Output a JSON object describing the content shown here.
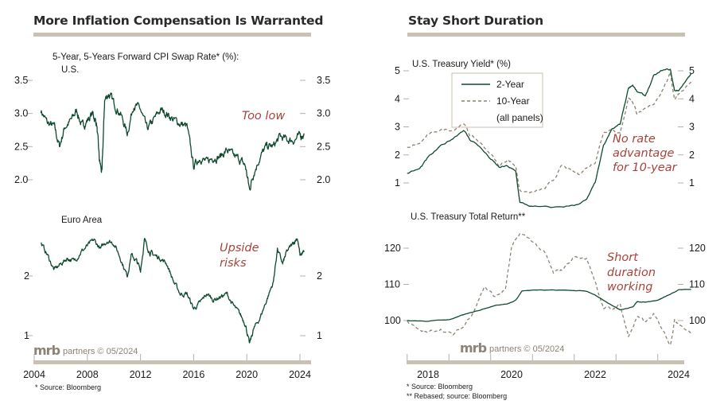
{
  "left_panel": {
    "title": "More Inflation Compensation Is Warranted",
    "footnote": "* Source: Bloomberg",
    "brand": {
      "mrb": "mrb",
      "rest": "partners © 05/2024"
    }
  },
  "right_panel": {
    "title": "Stay Short Duration",
    "footnotes": [
      "*  Source: Bloomberg",
      "** Rebased; source: Bloomberg"
    ],
    "brand": {
      "mrb": "mrb",
      "rest": "partners © 05/2024"
    },
    "legend": {
      "items": [
        "2-Year",
        "10-Year"
      ],
      "note": "(all panels)"
    }
  },
  "colors": {
    "primary_line": "#0d4a2e",
    "secondary_line": "#8d8272",
    "annotation": "#a8433b",
    "rule": "#c9c1b1",
    "tick": "#b5b0a6"
  },
  "chart_data": [
    {
      "id": "us_swap",
      "type": "line",
      "title": "5-Year, 5-Years Forward CPI Swap Rate* (%):",
      "subtitle": "U.S.",
      "annotation": "Too low",
      "xlabel": "",
      "ylabel": "%",
      "xlim": [
        2004,
        2024.3
      ],
      "ylim": [
        1.6,
        3.7
      ],
      "yticks": [
        "3.5",
        "3.0",
        "2.5",
        "2.0"
      ],
      "ytick_values": [
        3.5,
        3.0,
        2.5,
        2.0
      ],
      "series": [
        {
          "name": "U.S.",
          "x": [
            2004.5,
            2005.0,
            2005.5,
            2005.9,
            2006.3,
            2006.8,
            2007.2,
            2007.6,
            2008.0,
            2008.4,
            2008.7,
            2008.9,
            2009.1,
            2009.3,
            2009.6,
            2010.0,
            2010.5,
            2011.0,
            2011.5,
            2012.0,
            2012.5,
            2013.0,
            2013.5,
            2014.0,
            2014.5,
            2015.0,
            2015.5,
            2016.0,
            2016.5,
            2017.0,
            2017.5,
            2018.0,
            2018.5,
            2019.0,
            2019.5,
            2019.9,
            2020.2,
            2020.5,
            2021.0,
            2021.5,
            2022.0,
            2022.5,
            2023.0,
            2023.5,
            2024.0,
            2024.3
          ],
          "values": [
            3.05,
            2.85,
            2.8,
            2.5,
            2.8,
            2.9,
            3.05,
            2.8,
            2.9,
            3.0,
            2.85,
            2.3,
            2.1,
            3.2,
            3.3,
            3.15,
            3.0,
            2.7,
            3.15,
            3.05,
            2.75,
            2.9,
            3.05,
            3.0,
            2.9,
            2.85,
            2.8,
            2.2,
            2.35,
            2.25,
            2.35,
            2.35,
            2.45,
            2.35,
            2.3,
            2.2,
            1.85,
            2.1,
            2.35,
            2.5,
            2.5,
            2.65,
            2.6,
            2.6,
            2.65,
            2.7
          ]
        }
      ]
    },
    {
      "id": "euro_swap",
      "type": "line",
      "subtitle": "Euro Area",
      "annotation": "Upside risks",
      "xlim": [
        2004,
        2024.3
      ],
      "ylim": [
        0.7,
        2.9
      ],
      "yticks": [
        "2",
        "1"
      ],
      "ytick_values": [
        2,
        1
      ],
      "xticks": [
        "2004",
        "2008",
        "2012",
        "2016",
        "2020",
        "2024"
      ],
      "series": [
        {
          "name": "Euro Area",
          "x": [
            2004.5,
            2005.0,
            2005.5,
            2006.0,
            2006.5,
            2007.0,
            2007.5,
            2008.0,
            2008.5,
            2009.0,
            2009.5,
            2010.0,
            2010.5,
            2011.0,
            2011.3,
            2011.7,
            2012.0,
            2012.3,
            2012.7,
            2013.0,
            2013.5,
            2014.0,
            2014.5,
            2015.0,
            2015.5,
            2016.0,
            2016.5,
            2017.0,
            2017.5,
            2018.0,
            2018.5,
            2019.0,
            2019.5,
            2019.9,
            2020.2,
            2020.5,
            2021.0,
            2021.5,
            2022.0,
            2022.3,
            2022.7,
            2023.0,
            2023.5,
            2023.8,
            2024.0,
            2024.3
          ],
          "values": [
            2.55,
            2.35,
            2.1,
            2.2,
            2.3,
            2.25,
            2.4,
            2.5,
            2.6,
            2.45,
            2.6,
            2.55,
            2.3,
            2.0,
            2.35,
            2.25,
            2.1,
            2.6,
            2.4,
            2.35,
            2.3,
            2.2,
            1.9,
            1.7,
            1.7,
            1.45,
            1.55,
            1.7,
            1.6,
            1.65,
            1.7,
            1.5,
            1.35,
            1.2,
            0.85,
            1.1,
            1.3,
            1.6,
            1.9,
            2.45,
            2.2,
            2.4,
            2.55,
            2.65,
            2.35,
            2.4
          ]
        }
      ]
    },
    {
      "id": "ust_yield",
      "type": "line",
      "title": "U.S. Treasury Yield* (%)",
      "annotation": "No rate advantage for 10-year",
      "xlim": [
        2017.5,
        2024.4
      ],
      "ylim": [
        0,
        5.1
      ],
      "yticks": [
        "5",
        "4",
        "3",
        "2",
        "1"
      ],
      "ytick_values": [
        5,
        4,
        3,
        2,
        1
      ],
      "series": [
        {
          "name": "2-Year",
          "x": [
            2017.5,
            2017.8,
            2018.0,
            2018.3,
            2018.6,
            2018.85,
            2019.0,
            2019.2,
            2019.5,
            2019.7,
            2019.9,
            2020.1,
            2020.2,
            2020.5,
            2021.0,
            2021.5,
            2021.8,
            2022.0,
            2022.2,
            2022.4,
            2022.6,
            2022.8,
            2022.9,
            2023.0,
            2023.2,
            2023.4,
            2023.6,
            2023.8,
            2023.9,
            2024.0,
            2024.3
          ],
          "values": [
            1.35,
            1.5,
            1.9,
            2.3,
            2.6,
            2.9,
            2.55,
            2.35,
            1.85,
            1.55,
            1.6,
            1.4,
            0.3,
            0.15,
            0.12,
            0.2,
            0.4,
            1.0,
            2.3,
            2.9,
            3.1,
            4.4,
            4.5,
            4.25,
            4.1,
            4.8,
            5.0,
            5.05,
            4.3,
            4.3,
            4.9
          ]
        },
        {
          "name": "10-Year",
          "x": [
            2017.5,
            2017.8,
            2018.0,
            2018.3,
            2018.6,
            2018.85,
            2019.0,
            2019.2,
            2019.5,
            2019.7,
            2019.9,
            2020.1,
            2020.2,
            2020.5,
            2020.8,
            2021.0,
            2021.2,
            2021.4,
            2021.6,
            2021.8,
            2022.0,
            2022.2,
            2022.4,
            2022.6,
            2022.8,
            2022.9,
            2023.0,
            2023.2,
            2023.4,
            2023.6,
            2023.8,
            2023.9,
            2024.0,
            2024.3
          ],
          "values": [
            2.25,
            2.4,
            2.7,
            2.9,
            2.9,
            3.15,
            2.7,
            2.5,
            2.05,
            1.6,
            1.85,
            1.6,
            0.7,
            0.65,
            0.8,
            1.1,
            1.6,
            1.45,
            1.3,
            1.55,
            1.75,
            2.8,
            2.95,
            2.75,
            4.05,
            3.9,
            3.5,
            3.6,
            3.8,
            4.3,
            4.9,
            4.0,
            4.2,
            4.6
          ]
        }
      ]
    },
    {
      "id": "ust_total_return",
      "type": "line",
      "title": "U.S. Treasury Total Return**",
      "annotation": "Short duration working",
      "xlim": [
        2017.5,
        2024.4
      ],
      "ylim": [
        93,
        125
      ],
      "yticks": [
        "120",
        "110",
        "100"
      ],
      "ytick_values": [
        120,
        110,
        100
      ],
      "xticks": [
        "2018",
        "2020",
        "2022",
        "2024"
      ],
      "series": [
        {
          "name": "2-Year",
          "x": [
            2017.5,
            2018.0,
            2018.5,
            2018.9,
            2019.2,
            2019.6,
            2019.9,
            2020.1,
            2020.25,
            2020.6,
            2021.0,
            2021.5,
            2021.8,
            2022.0,
            2022.3,
            2022.6,
            2022.9,
            2023.0,
            2023.2,
            2023.5,
            2023.8,
            2024.0,
            2024.3
          ],
          "values": [
            100,
            99.8,
            100.3,
            101.8,
            102.8,
            104.2,
            104.6,
            105.6,
            108.2,
            108.4,
            108.4,
            108.3,
            108.1,
            107.1,
            104.8,
            102.9,
            103.8,
            105.2,
            105.1,
            105.6,
            107.3,
            108.6,
            108.6
          ]
        },
        {
          "name": "10-Year",
          "x": [
            2017.5,
            2017.8,
            2018.0,
            2018.3,
            2018.6,
            2018.85,
            2019.1,
            2019.35,
            2019.6,
            2019.85,
            2020.0,
            2020.2,
            2020.5,
            2020.8,
            2021.0,
            2021.2,
            2021.5,
            2021.8,
            2022.0,
            2022.2,
            2022.4,
            2022.6,
            2022.8,
            2023.0,
            2023.2,
            2023.4,
            2023.6,
            2023.8,
            2023.9,
            2024.0,
            2024.3
          ],
          "values": [
            100,
            97,
            96.6,
            97.8,
            96,
            98.3,
            103,
            109.5,
            106.5,
            108.5,
            120,
            124,
            122,
            118.5,
            113,
            114,
            117.7,
            117,
            111,
            103.5,
            103,
            104.5,
            95.5,
            101,
            99.5,
            101.5,
            98,
            93.5,
            100,
            99.5,
            96.5
          ]
        }
      ]
    }
  ]
}
